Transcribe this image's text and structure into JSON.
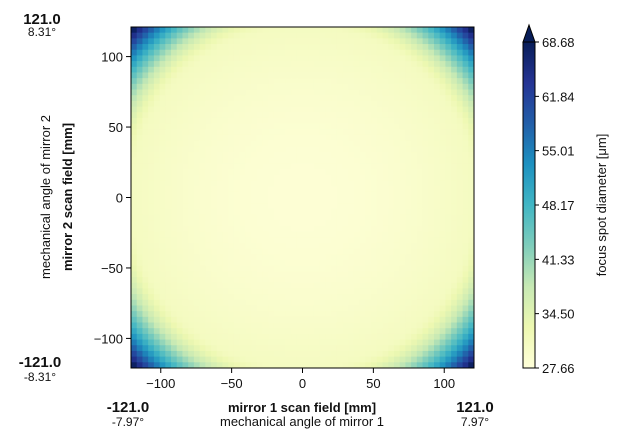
{
  "chart_data": {
    "type": "heatmap",
    "x": {
      "label": "mirror 1 scan field [mm]",
      "sublabel": "mechanical angle of mirror 1",
      "range": [
        -121.0,
        121.0
      ],
      "ticks": [
        -100,
        -50,
        0,
        50,
        100
      ]
    },
    "y": {
      "label": "mirror 2 scan field [mm]",
      "sublabel": "mechanical angle of mirror 2",
      "range": [
        -121.0,
        121.0
      ],
      "ticks": [
        -100,
        -50,
        0,
        50,
        100
      ]
    },
    "corner_labels": {
      "x_min": {
        "value": "-121.0",
        "angle": "-7.97°"
      },
      "x_max": {
        "value": "121.0",
        "angle": "7.97°"
      },
      "y_min": {
        "value": "-121.0",
        "angle": "-8.31°"
      },
      "y_max": {
        "value": "121.0",
        "angle": "8.31°"
      }
    },
    "colorbar": {
      "label": "focus spot diameter [μm]",
      "ticks": [
        "27.66",
        "34.50",
        "41.33",
        "48.17",
        "55.01",
        "61.84",
        "68.68"
      ],
      "min": 27.66,
      "max": 68.68,
      "extend": "max",
      "colormap": [
        "#ffffd9",
        "#edf8b1",
        "#c7e9b4",
        "#7fcdbb",
        "#41b6c4",
        "#1d91c0",
        "#225ea8",
        "#253494",
        "#081d58"
      ]
    },
    "field": {
      "description_values": "center minimum about 27.7, corners up to about 68.7",
      "center": 27.66,
      "corner_max": 68.68
    }
  }
}
